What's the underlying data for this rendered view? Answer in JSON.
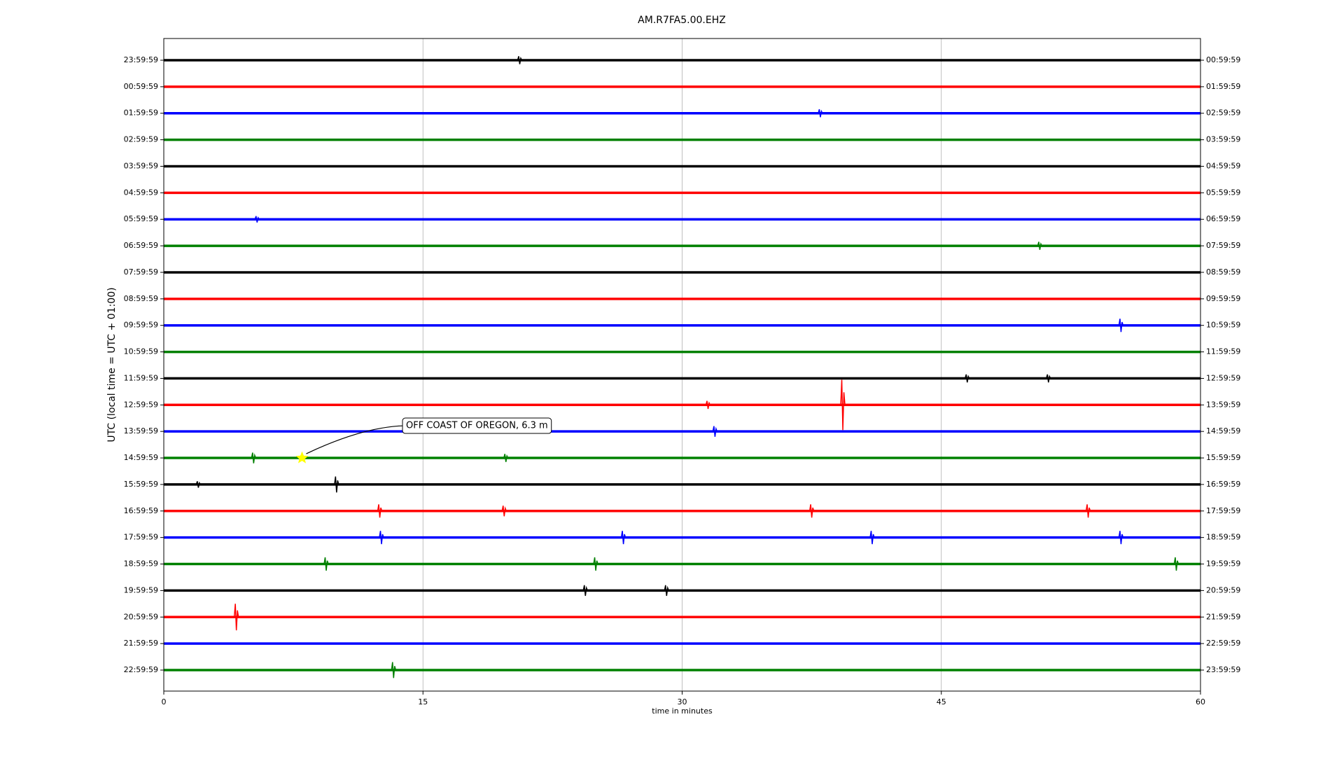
{
  "chart_data": {
    "type": "helicorder",
    "title": "AM.R7FA5.00.EHZ",
    "x_label": "time in minutes",
    "y_label": "UTC (local time = UTC + 01:00)",
    "xlim": [
      0,
      60
    ],
    "xticks": [
      0,
      15,
      30,
      45,
      60
    ],
    "grid": true,
    "colors": [
      "#000000",
      "#ff0000",
      "#0000ff",
      "#008000"
    ],
    "rows": [
      {
        "label": "23:59:59",
        "right_label": "00:59:59",
        "spikes": [
          {
            "x": 20.6,
            "amp": 0.15
          }
        ]
      },
      {
        "label": "00:59:59",
        "right_label": "01:59:59",
        "spikes": []
      },
      {
        "label": "01:59:59",
        "right_label": "02:59:59",
        "spikes": [
          {
            "x": 38,
            "amp": 0.15
          }
        ]
      },
      {
        "label": "02:59:59",
        "right_label": "03:59:59",
        "spikes": []
      },
      {
        "label": "03:59:59",
        "right_label": "04:59:59",
        "spikes": []
      },
      {
        "label": "04:59:59",
        "right_label": "05:59:59",
        "spikes": []
      },
      {
        "label": "05:59:59",
        "right_label": "06:59:59",
        "spikes": [
          {
            "x": 5.4,
            "amp": 0.12
          }
        ]
      },
      {
        "label": "06:59:59",
        "right_label": "07:59:59",
        "spikes": [
          {
            "x": 50.7,
            "amp": 0.15
          }
        ]
      },
      {
        "label": "07:59:59",
        "right_label": "08:59:59",
        "spikes": []
      },
      {
        "label": "08:59:59",
        "right_label": "09:59:59",
        "spikes": []
      },
      {
        "label": "09:59:59",
        "right_label": "10:59:59",
        "spikes": [
          {
            "x": 55.4,
            "amp": 0.25
          }
        ]
      },
      {
        "label": "10:59:59",
        "right_label": "11:59:59",
        "spikes": []
      },
      {
        "label": "11:59:59",
        "right_label": "12:59:59",
        "spikes": [
          {
            "x": 46.5,
            "amp": 0.15
          },
          {
            "x": 51.2,
            "amp": 0.15
          }
        ]
      },
      {
        "label": "12:59:59",
        "right_label": "13:59:59",
        "spikes": [
          {
            "x": 39.3,
            "amp": 0.95
          },
          {
            "x": 31.5,
            "amp": 0.15
          }
        ]
      },
      {
        "label": "13:59:59",
        "right_label": "14:59:59",
        "spikes": [
          {
            "x": 31.9,
            "amp": 0.2
          }
        ]
      },
      {
        "label": "14:59:59",
        "right_label": "15:59:59",
        "spikes": [
          {
            "x": 5.2,
            "amp": 0.2
          },
          {
            "x": 19.8,
            "amp": 0.15
          }
        ],
        "annotation": {
          "text": "OFF COAST OF OREGON, 6.3 m",
          "x": 8
        }
      },
      {
        "label": "15:59:59",
        "right_label": "16:59:59",
        "spikes": [
          {
            "x": 10,
            "amp": 0.3
          },
          {
            "x": 2,
            "amp": 0.12
          }
        ]
      },
      {
        "label": "16:59:59",
        "right_label": "17:59:59",
        "spikes": [
          {
            "x": 12.5,
            "amp": 0.25
          },
          {
            "x": 19.7,
            "amp": 0.2
          },
          {
            "x": 37.5,
            "amp": 0.25
          },
          {
            "x": 53.5,
            "amp": 0.25
          }
        ]
      },
      {
        "label": "17:59:59",
        "right_label": "18:59:59",
        "spikes": [
          {
            "x": 12.6,
            "amp": 0.25
          },
          {
            "x": 26.6,
            "amp": 0.25
          },
          {
            "x": 41,
            "amp": 0.25
          },
          {
            "x": 55.4,
            "amp": 0.25
          }
        ]
      },
      {
        "label": "18:59:59",
        "right_label": "19:59:59",
        "spikes": [
          {
            "x": 9.4,
            "amp": 0.25
          },
          {
            "x": 25,
            "amp": 0.25
          },
          {
            "x": 58.6,
            "amp": 0.25
          }
        ]
      },
      {
        "label": "19:59:59",
        "right_label": "20:59:59",
        "spikes": [
          {
            "x": 24.4,
            "amp": 0.2
          },
          {
            "x": 29.1,
            "amp": 0.2
          }
        ]
      },
      {
        "label": "20:59:59",
        "right_label": "21:59:59",
        "spikes": [
          {
            "x": 4.2,
            "amp": 0.5
          }
        ]
      },
      {
        "label": "21:59:59",
        "right_label": "22:59:59",
        "spikes": []
      },
      {
        "label": "22:59:59",
        "right_label": "23:59:59",
        "spikes": [
          {
            "x": 13.3,
            "amp": 0.3
          }
        ]
      }
    ]
  }
}
